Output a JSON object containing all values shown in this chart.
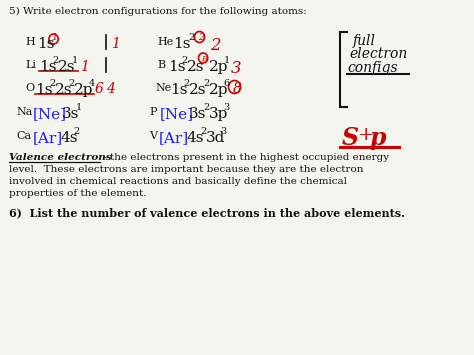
{
  "bg_color": "#f5f5f0",
  "title_line": "5) Write electron configurations for the following atoms:",
  "valence_text_line1_a": "Valence electrons",
  "valence_text_line1_b": " - the electrons present in the highest occupied energy",
  "valence_text_line2": "level.  These electrons are important because they are the electron",
  "valence_text_line3": "involved in chemical reactions and basically define the chemical",
  "valence_text_line4": "properties of the element.",
  "footer": "6)  List the number of valence electrons in the above elements.",
  "hand_color": "#cc0000",
  "bracket_color": "#1a1aff",
  "black": "#111111"
}
